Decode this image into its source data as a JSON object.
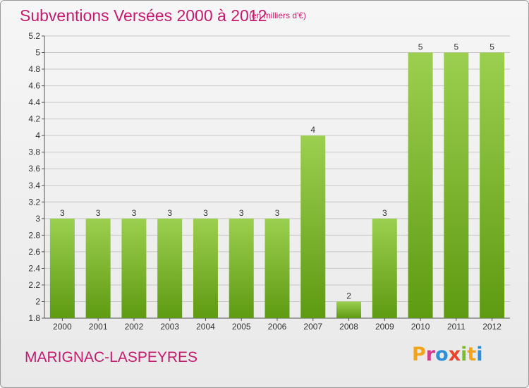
{
  "header": {
    "title": "Subventions Versées 2000 à 2012",
    "subtitle": "(en milliers d'€)"
  },
  "footer": {
    "commune": "MARIGNAC-LASPEYRES",
    "logo": [
      "P",
      "r",
      "o",
      "x",
      "i",
      "t",
      "i"
    ]
  },
  "colors": {
    "title": "#c61a6e",
    "bar_top": "#9ccf4f",
    "bar_bottom": "#5e9a12",
    "grid": "#c8c8c8",
    "logo": [
      "#f2a51a",
      "#d23c8c",
      "#2d8fd6",
      "#e8452b",
      "#7dbb2c",
      "#f2a51a",
      "#2d8fd6"
    ]
  },
  "chart_data": {
    "type": "bar",
    "categories": [
      "2000",
      "2001",
      "2002",
      "2003",
      "2004",
      "2005",
      "2006",
      "2007",
      "2008",
      "2009",
      "2010",
      "2011",
      "2012"
    ],
    "values": [
      3,
      3,
      3,
      3,
      3,
      3,
      3,
      4,
      2,
      3,
      5,
      5,
      5
    ],
    "data_labels": [
      "3",
      "3",
      "3",
      "3",
      "3",
      "3",
      "3",
      "4",
      "2",
      "3",
      "5",
      "5",
      "5"
    ],
    "ylim": [
      1.8,
      5.2
    ],
    "yticks": [
      "1.8",
      "2",
      "2.2",
      "2.4",
      "2.6",
      "2.8",
      "3",
      "3.2",
      "3.4",
      "3.6",
      "3.8",
      "4",
      "4.2",
      "4.4",
      "4.6",
      "4.8",
      "5",
      "5.2"
    ],
    "grid": true,
    "legend": "none"
  }
}
